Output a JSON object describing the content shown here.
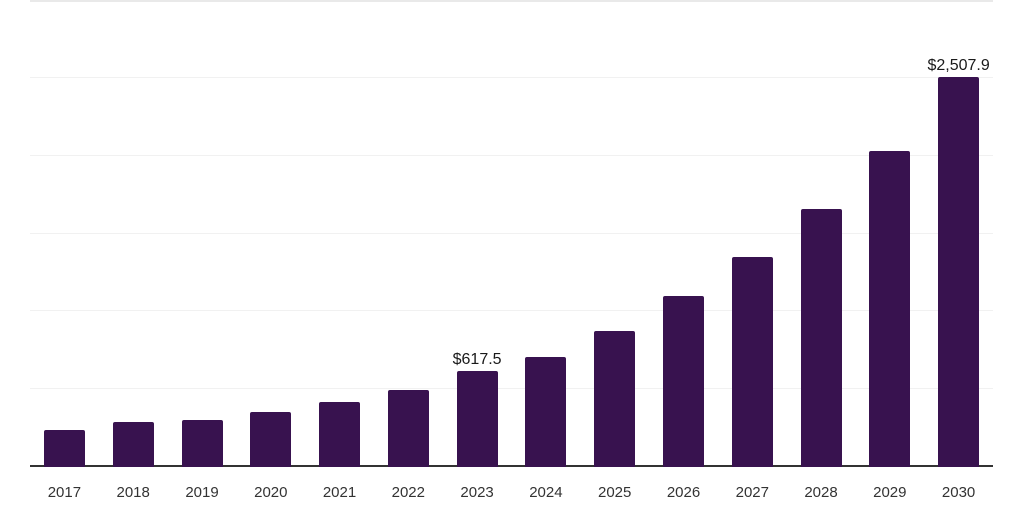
{
  "chart_data": {
    "type": "bar",
    "categories": [
      "2017",
      "2018",
      "2019",
      "2020",
      "2021",
      "2022",
      "2023",
      "2024",
      "2025",
      "2026",
      "2027",
      "2028",
      "2029",
      "2030"
    ],
    "values": [
      235,
      292,
      305,
      352,
      416,
      493,
      617.5,
      709,
      876,
      1100,
      1352,
      1656,
      2031,
      2507.9
    ],
    "data_labels": [
      "",
      "",
      "",
      "",
      "",
      "",
      "$617.5",
      "",
      "",
      "",
      "",
      "",
      "",
      "$2,507.9"
    ],
    "title": "",
    "xlabel": "",
    "ylabel": "",
    "ylim": [
      0,
      3000
    ],
    "gridline_interval": 500,
    "grid": "horizontal",
    "legend_position": "none",
    "y_tick_labels_visible": false,
    "colors": {
      "bar": "#38124f",
      "axis": "#333333",
      "gridline": "#f1f1f1",
      "top_gridline": "#e9e9e9",
      "data_label_text": "#1a1a1a",
      "tick_label_text": "#333333",
      "background": "#ffffff"
    }
  }
}
